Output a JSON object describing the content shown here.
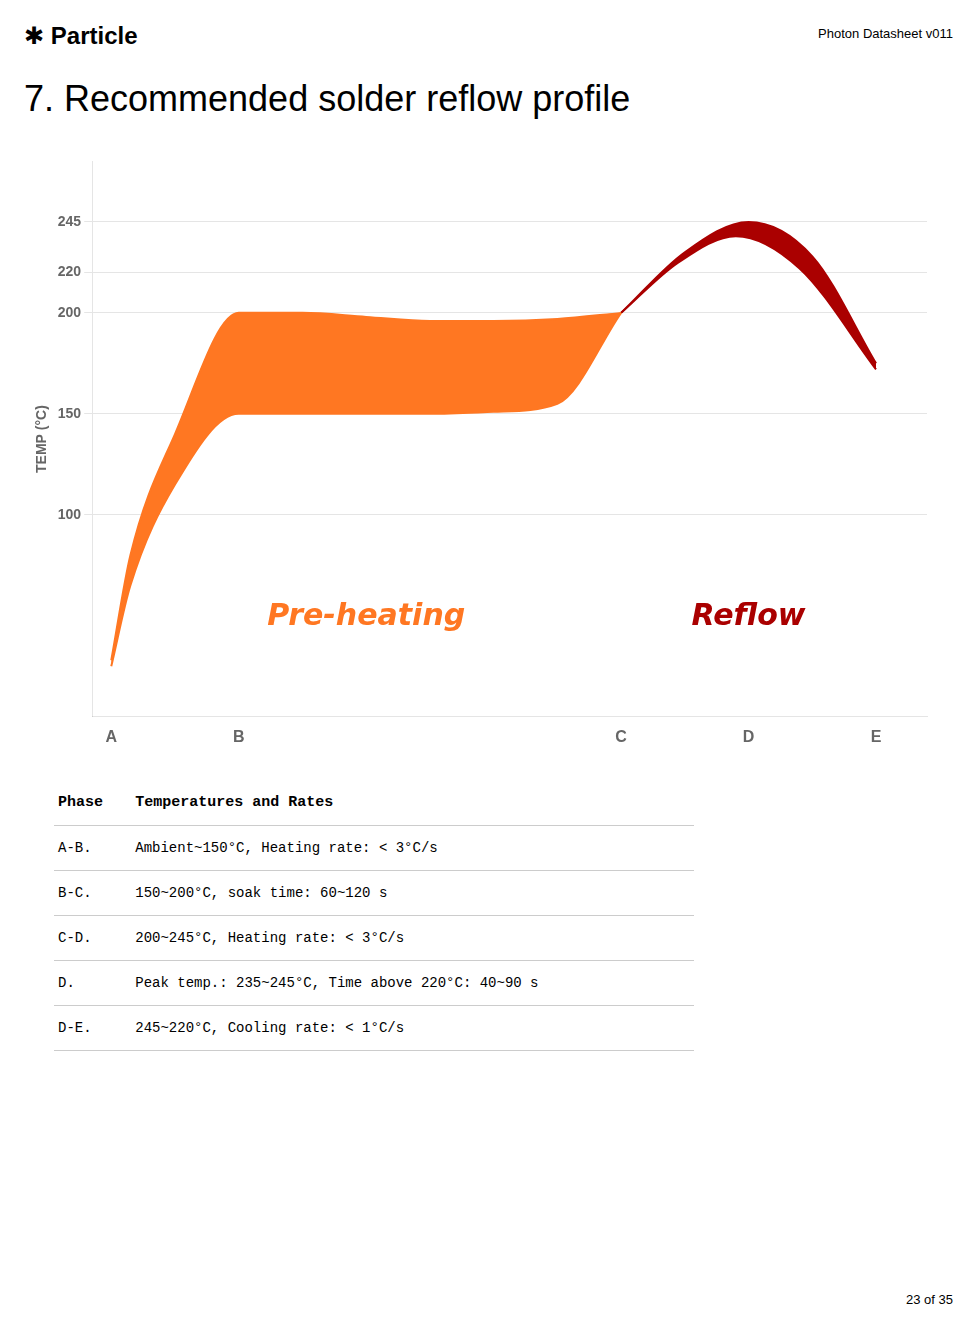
{
  "chart_data": {
    "type": "area",
    "logo": "✱ Particle",
    "header": "Photon Datasheet v011",
    "title": "7. Recommended solder reflow profile",
    "footer": "23 of 35",
    "ylabel": "TEMP (°C)",
    "xlim": [
      -0.15,
      6.4
    ],
    "xticks": [
      {
        "value": 0,
        "label": "A"
      },
      {
        "value": 1,
        "label": "B"
      },
      {
        "value": 4,
        "label": "C"
      },
      {
        "value": 5,
        "label": "D"
      },
      {
        "value": 6,
        "label": "E"
      }
    ],
    "ylim": [
      0,
      275
    ],
    "yticks": [
      100,
      150,
      200,
      220,
      245
    ],
    "grid": "y",
    "series": [
      {
        "name": "Pre-heating",
        "color": "#FF7722",
        "upper_x": [
          0.0,
          0.15,
          0.5,
          1.0,
          1.5,
          2.0,
          2.5,
          3.0,
          3.5,
          4.0
        ],
        "upper": [
          28,
          80,
          140,
          200,
          200,
          198,
          196,
          196,
          197,
          200
        ],
        "lower_x": [
          0.0,
          0.15,
          0.5,
          1.0,
          1.5,
          2.0,
          2.5,
          3.0,
          3.5,
          4.0
        ],
        "lower": [
          25,
          65,
          115,
          150,
          150,
          150,
          150,
          151,
          155,
          200
        ]
      },
      {
        "name": "Reflow",
        "color": "#AA0000",
        "upper_x": [
          4.0,
          4.5,
          5.0,
          5.5,
          6.0
        ],
        "upper": [
          200,
          230,
          245,
          228,
          175
        ],
        "lower_x": [
          4.0,
          4.45,
          4.9,
          5.4,
          6.0
        ],
        "lower": [
          200,
          225,
          238,
          222,
          172
        ]
      }
    ],
    "table": {
      "columns": [
        "Phase",
        "Temperatures and Rates"
      ],
      "rows": [
        [
          "A-B.",
          "Ambient~150°C, Heating rate: < 3°C/s"
        ],
        [
          "B-C.",
          "150~200°C, soak time: 60~120 s"
        ],
        [
          "C-D.",
          "200~245°C, Heating rate: < 3°C/s"
        ],
        [
          "D.",
          "Peak temp.: 235~245°C, Time above 220°C: 40~90 s"
        ],
        [
          "D-E.",
          "245~220°C, Cooling rate: < 1°C/s"
        ]
      ]
    }
  }
}
